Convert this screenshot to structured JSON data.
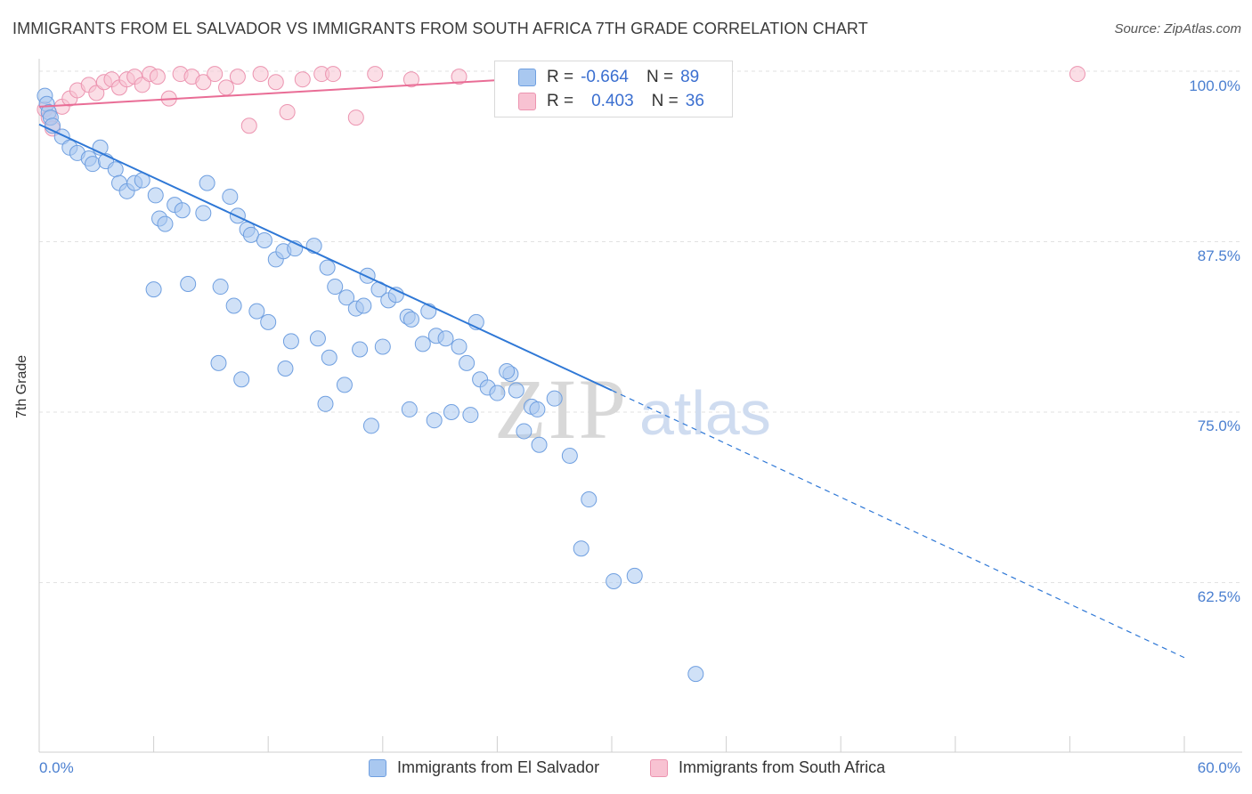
{
  "header": {
    "title": "IMMIGRANTS FROM EL SALVADOR VS IMMIGRANTS FROM SOUTH AFRICA 7TH GRADE CORRELATION CHART",
    "source": "Source: ZipAtlas.com"
  },
  "watermark": {
    "zip": "ZIP",
    "atlas": "atlas"
  },
  "legend": {
    "rows": [
      {
        "r_label": "R =",
        "r_value": "-0.664",
        "n_label": "N =",
        "n_value": "89"
      },
      {
        "r_label": "R =",
        "r_value": "0.403",
        "n_label": "N =",
        "n_value": "36"
      }
    ],
    "bottom": [
      "Immigrants from El Salvador",
      "Immigrants from South Africa"
    ]
  },
  "axes": {
    "ylabel": "7th Grade",
    "yticks": [
      "100.0%",
      "87.5%",
      "75.0%",
      "62.5%"
    ],
    "xticks": [
      "0.0%",
      "60.0%"
    ]
  },
  "colors": {
    "blue_fill": "#a9c8f0",
    "blue_stroke": "#6f9fe0",
    "blue_line": "#2f78d6",
    "pink_fill": "#f8c2d2",
    "pink_stroke": "#ec94b0",
    "pink_line": "#e96d96",
    "grid": "#e2e2e2",
    "tick_text": "#4a7fd0"
  },
  "chart_data": {
    "type": "scatter",
    "title": "IMMIGRANTS FROM EL SALVADOR VS IMMIGRANTS FROM SOUTH AFRICA 7TH GRADE CORRELATION CHART",
    "xlabel": "",
    "ylabel": "7th Grade",
    "xlim": [
      0,
      60
    ],
    "ylim": [
      50,
      101
    ],
    "grid": true,
    "legend_position": "top",
    "series": [
      {
        "name": "Immigrants from El Salvador",
        "color": "blue",
        "r": -0.664,
        "n": 89,
        "trend": {
          "x0": 0,
          "y0": 96.1,
          "x1": 30,
          "y1": 76.6,
          "x_dash_end": 60,
          "y_dash_end": 57.0
        },
        "points": [
          [
            0.3,
            98.2
          ],
          [
            0.4,
            97.6
          ],
          [
            0.5,
            97.0
          ],
          [
            0.6,
            96.6
          ],
          [
            0.7,
            96.0
          ],
          [
            1.2,
            95.2
          ],
          [
            1.6,
            94.4
          ],
          [
            2.0,
            94.0
          ],
          [
            2.6,
            93.6
          ],
          [
            2.8,
            93.2
          ],
          [
            3.2,
            94.4
          ],
          [
            3.5,
            93.4
          ],
          [
            4.0,
            92.8
          ],
          [
            4.2,
            91.8
          ],
          [
            4.6,
            91.2
          ],
          [
            5.0,
            91.8
          ],
          [
            5.4,
            92.0
          ],
          [
            6.1,
            90.9
          ],
          [
            6.3,
            89.2
          ],
          [
            6.6,
            88.8
          ],
          [
            7.1,
            90.2
          ],
          [
            7.5,
            89.8
          ],
          [
            8.6,
            89.6
          ],
          [
            8.8,
            91.8
          ],
          [
            10.0,
            90.8
          ],
          [
            10.4,
            89.4
          ],
          [
            10.9,
            88.4
          ],
          [
            11.1,
            88.0
          ],
          [
            11.8,
            87.6
          ],
          [
            12.4,
            86.2
          ],
          [
            12.8,
            86.8
          ],
          [
            13.4,
            87.0
          ],
          [
            14.4,
            87.2
          ],
          [
            15.1,
            85.6
          ],
          [
            15.5,
            84.2
          ],
          [
            16.1,
            83.4
          ],
          [
            16.6,
            82.6
          ],
          [
            17.0,
            82.8
          ],
          [
            17.2,
            85.0
          ],
          [
            17.8,
            84.0
          ],
          [
            18.3,
            83.2
          ],
          [
            18.7,
            83.6
          ],
          [
            19.3,
            82.0
          ],
          [
            19.5,
            81.8
          ],
          [
            20.4,
            82.4
          ],
          [
            20.8,
            80.6
          ],
          [
            21.3,
            80.4
          ],
          [
            22.0,
            79.8
          ],
          [
            22.4,
            78.6
          ],
          [
            23.1,
            77.4
          ],
          [
            23.5,
            76.8
          ],
          [
            24.0,
            76.4
          ],
          [
            24.7,
            77.8
          ],
          [
            25.0,
            76.6
          ],
          [
            25.8,
            75.4
          ],
          [
            26.1,
            75.2
          ],
          [
            6.0,
            84.0
          ],
          [
            7.8,
            84.4
          ],
          [
            9.5,
            84.2
          ],
          [
            10.2,
            82.8
          ],
          [
            11.4,
            82.4
          ],
          [
            12.0,
            81.6
          ],
          [
            13.2,
            80.2
          ],
          [
            14.6,
            80.4
          ],
          [
            15.2,
            79.0
          ],
          [
            16.8,
            79.6
          ],
          [
            18.0,
            79.8
          ],
          [
            20.1,
            80.0
          ],
          [
            22.9,
            81.6
          ],
          [
            24.5,
            78.0
          ],
          [
            27.0,
            76.0
          ],
          [
            9.4,
            78.6
          ],
          [
            10.6,
            77.4
          ],
          [
            12.9,
            78.2
          ],
          [
            15.0,
            75.6
          ],
          [
            16.0,
            77.0
          ],
          [
            17.4,
            74.0
          ],
          [
            19.4,
            75.2
          ],
          [
            20.7,
            74.4
          ],
          [
            21.6,
            75.0
          ],
          [
            22.6,
            74.8
          ],
          [
            25.4,
            73.6
          ],
          [
            26.2,
            72.6
          ],
          [
            27.8,
            71.8
          ],
          [
            28.8,
            68.6
          ],
          [
            28.4,
            65.0
          ],
          [
            30.1,
            62.6
          ],
          [
            31.2,
            63.0
          ],
          [
            34.4,
            55.8
          ]
        ]
      },
      {
        "name": "Immigrants from South Africa",
        "color": "pink",
        "r": 0.403,
        "n": 36,
        "trend": {
          "x0": 0,
          "y0": 97.4,
          "x1": 26,
          "y1": 99.5
        },
        "points": [
          [
            0.3,
            97.2
          ],
          [
            0.5,
            96.6
          ],
          [
            0.7,
            95.8
          ],
          [
            1.2,
            97.4
          ],
          [
            1.6,
            98.0
          ],
          [
            2.0,
            98.6
          ],
          [
            2.6,
            99.0
          ],
          [
            3.0,
            98.4
          ],
          [
            3.4,
            99.2
          ],
          [
            3.8,
            99.4
          ],
          [
            4.2,
            98.8
          ],
          [
            4.6,
            99.4
          ],
          [
            5.0,
            99.6
          ],
          [
            5.4,
            99.0
          ],
          [
            5.8,
            99.8
          ],
          [
            6.2,
            99.6
          ],
          [
            6.8,
            98.0
          ],
          [
            7.4,
            99.8
          ],
          [
            8.0,
            99.6
          ],
          [
            8.6,
            99.2
          ],
          [
            9.2,
            99.8
          ],
          [
            9.8,
            98.8
          ],
          [
            10.4,
            99.6
          ],
          [
            11.0,
            96.0
          ],
          [
            11.6,
            99.8
          ],
          [
            12.4,
            99.2
          ],
          [
            13.0,
            97.0
          ],
          [
            13.8,
            99.4
          ],
          [
            14.8,
            99.8
          ],
          [
            15.4,
            99.8
          ],
          [
            16.6,
            96.6
          ],
          [
            17.6,
            99.8
          ],
          [
            19.5,
            99.4
          ],
          [
            22.0,
            99.6
          ],
          [
            25.0,
            99.8
          ],
          [
            54.4,
            99.8
          ]
        ]
      }
    ]
  }
}
